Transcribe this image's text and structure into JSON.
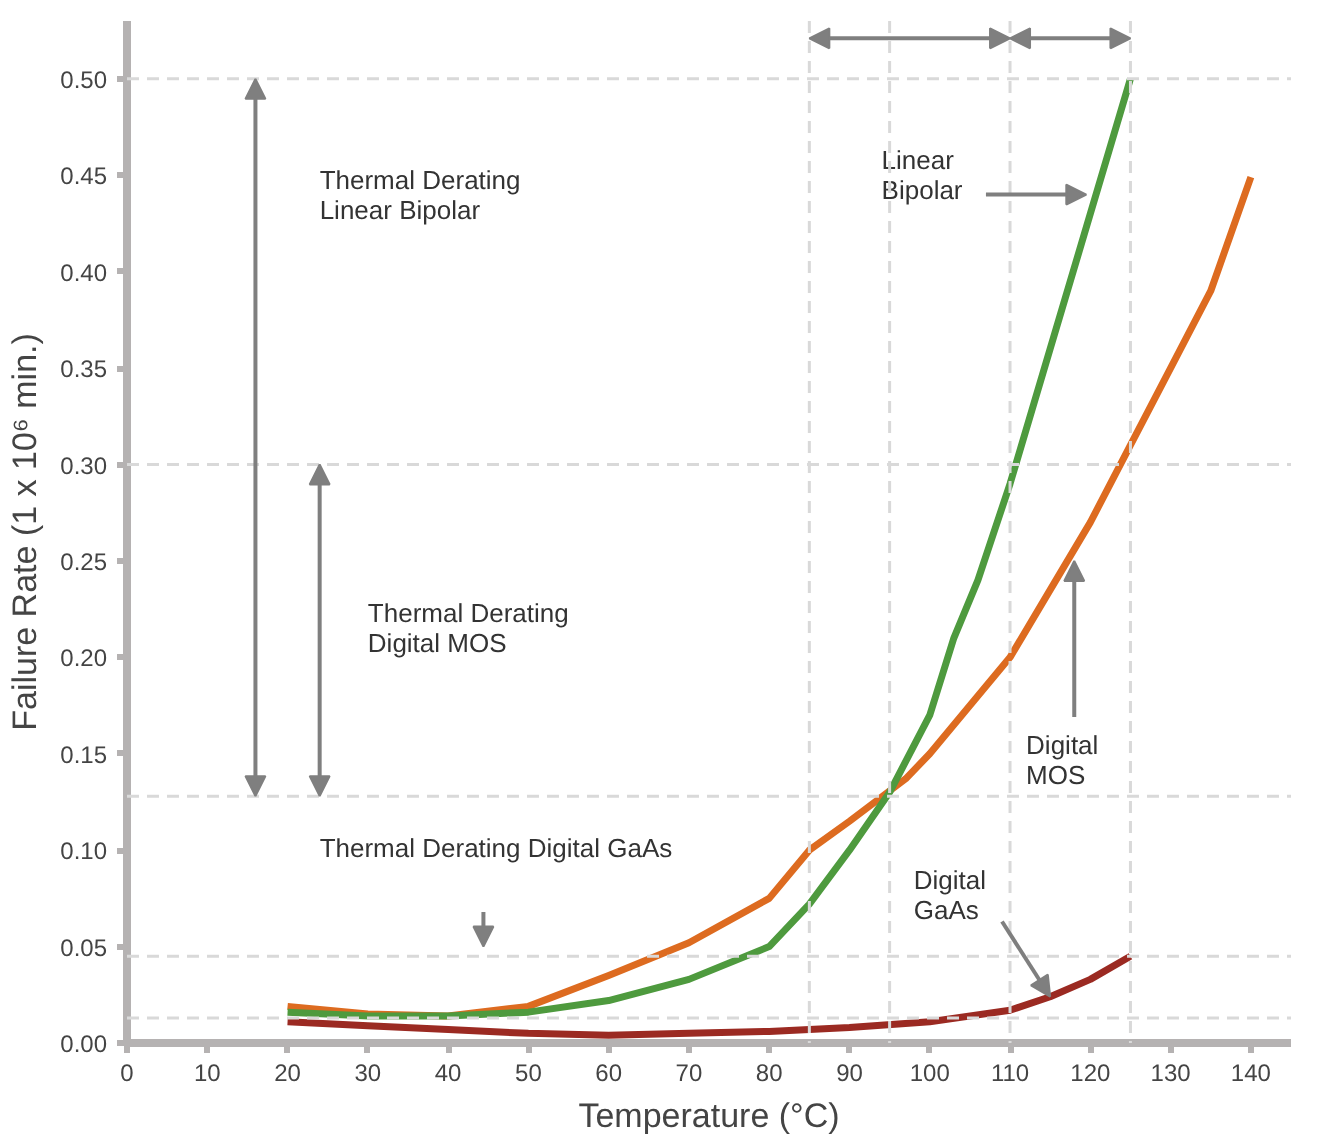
{
  "chart_data": {
    "type": "line",
    "xlabel": "Temperature (°C)",
    "ylabel": "Failure Rate (1 x 10⁶ min.)",
    "xlim": [
      0,
      145
    ],
    "ylim": [
      0,
      0.53
    ],
    "xticks": [
      0,
      10,
      20,
      30,
      40,
      50,
      60,
      70,
      80,
      90,
      100,
      110,
      120,
      130,
      140
    ],
    "yticks": [
      {
        "value": 0,
        "label": "0.00"
      },
      {
        "value": 0.05,
        "label": "0.05"
      },
      {
        "value": 0.1,
        "label": "0.10"
      },
      {
        "value": 0.15,
        "label": "0.15"
      },
      {
        "value": 0.2,
        "label": "0.20"
      },
      {
        "value": 0.25,
        "label": "0.25"
      },
      {
        "value": 0.3,
        "label": "0.30"
      },
      {
        "value": 0.35,
        "label": "0.35"
      },
      {
        "value": 0.4,
        "label": "0.40"
      },
      {
        "value": 0.45,
        "label": "0.45"
      },
      {
        "value": 0.5,
        "label": "0.50"
      }
    ],
    "grid": false,
    "marker": "none",
    "line_style": "solid",
    "series": [
      {
        "color": "#dd6b20",
        "x": [
          20,
          30,
          40,
          50,
          60,
          70,
          80,
          85,
          90,
          97,
          100,
          110,
          115,
          120,
          125,
          130,
          135,
          140
        ],
        "values": [
          0.019,
          0.015,
          0.014,
          0.019,
          0.035,
          0.052,
          0.075,
          0.1,
          0.115,
          0.137,
          0.15,
          0.2,
          0.235,
          0.27,
          0.31,
          0.35,
          0.39,
          0.449
        ]
      },
      {
        "color": "#4e9a3e",
        "x": [
          20,
          30,
          40,
          50,
          60,
          70,
          80,
          85,
          90,
          95,
          100,
          103,
          106,
          110,
          115,
          120,
          125
        ],
        "values": [
          0.016,
          0.014,
          0.014,
          0.016,
          0.022,
          0.033,
          0.05,
          0.072,
          0.1,
          0.13,
          0.17,
          0.21,
          0.24,
          0.29,
          0.36,
          0.43,
          0.5
        ]
      },
      {
        "color": "#9b2a22",
        "x": [
          20,
          30,
          40,
          50,
          60,
          70,
          80,
          90,
          100,
          110,
          115,
          120,
          125
        ],
        "values": [
          0.011,
          0.009,
          0.007,
          0.005,
          0.004,
          0.005,
          0.006,
          0.008,
          0.011,
          0.017,
          0.024,
          0.033,
          0.045
        ]
      }
    ],
    "ref_lines": [
      {
        "axis": "y",
        "value": 0.5,
        "color": "#d9d9d9",
        "line_style": "dashed"
      },
      {
        "axis": "y",
        "value": 0.3,
        "color": "#d9d9d9",
        "line_style": "dashed"
      },
      {
        "axis": "y",
        "value": 0.128,
        "color": "#d9d9d9",
        "line_style": "dashed"
      },
      {
        "axis": "y",
        "value": 0.045,
        "color": "#d9d9d9",
        "line_style": "dashed"
      },
      {
        "axis": "y",
        "value": 0.013,
        "color": "#d9d9d9",
        "line_style": "dashed"
      },
      {
        "axis": "x",
        "value": 85,
        "color": "#d9d9d9",
        "line_style": "dashed"
      },
      {
        "axis": "x",
        "value": 95,
        "color": "#d9d9d9",
        "line_style": "dashed"
      },
      {
        "axis": "x",
        "value": 110,
        "color": "#d9d9d9",
        "line_style": "dashed"
      },
      {
        "axis": "x",
        "value": 125,
        "color": "#d9d9d9",
        "line_style": "dashed"
      }
    ],
    "annotations": [
      "Thermal  Derating\nLinear Bipolar",
      "Thermal  Derating\nDigital MOS",
      "Thermal  Derating Digital GaAs",
      {
        "text": "Linear\nBipolar",
        "x": 119.5,
        "y": 0.44
      },
      {
        "text": "Digital\nMOS",
        "x": 118,
        "y": 0.25
      },
      {
        "text": "Digital\nGaAs",
        "x": 115,
        "y": 0.024
      }
    ]
  }
}
